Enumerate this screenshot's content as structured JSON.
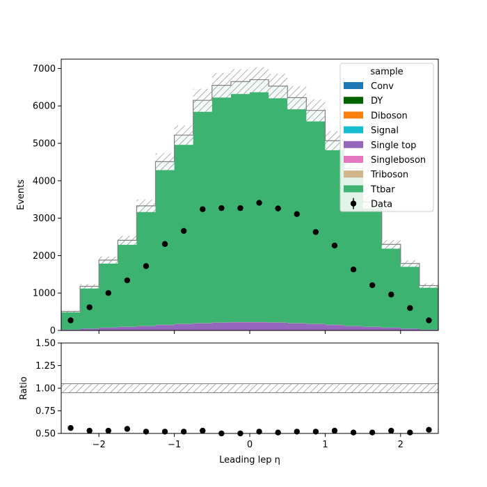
{
  "colors": {
    "Conv": "#1f77b4",
    "DY": "#006400",
    "Diboson": "#ff7f0e",
    "Signal": "#17becf",
    "Single top": "#9467bd",
    "Singleboson": "#e377c2",
    "Triboson": "#d2b48c",
    "Ttbar": "#3cb371",
    "Data": "#000000",
    "uncertainty": "#808080"
  },
  "legend": {
    "title": "sample",
    "entries": [
      "Conv",
      "DY",
      "Diboson",
      "Signal",
      "Single top",
      "Singleboson",
      "Triboson",
      "Ttbar",
      "Data"
    ]
  },
  "chart_data": [
    {
      "type": "bar",
      "subtype": "stacked-histogram",
      "xlabel": "",
      "ylabel": "Events",
      "xlim": [
        -2.5,
        2.5
      ],
      "ylim": [
        0,
        7250
      ],
      "xticks": [
        -2,
        -1,
        0,
        1,
        2
      ],
      "yticks": [
        0,
        1000,
        2000,
        3000,
        4000,
        5000,
        6000,
        7000
      ],
      "bin_edges": [
        -2.5,
        -2.25,
        -2.0,
        -1.75,
        -1.5,
        -1.25,
        -1.0,
        -0.75,
        -0.5,
        -0.25,
        0.0,
        0.25,
        0.5,
        0.75,
        1.0,
        1.25,
        1.5,
        1.75,
        2.0,
        2.25,
        2.5
      ],
      "series": [
        {
          "name": "Conv",
          "values": [
            0,
            0,
            0,
            0,
            0,
            0,
            0,
            0,
            0,
            0,
            0,
            0,
            0,
            0,
            0,
            0,
            0,
            0,
            0,
            0
          ]
        },
        {
          "name": "DY",
          "values": [
            2,
            3,
            4,
            5,
            5,
            6,
            7,
            8,
            8,
            8,
            8,
            8,
            8,
            7,
            6,
            5,
            5,
            4,
            3,
            2
          ]
        },
        {
          "name": "Diboson",
          "values": [
            0,
            0,
            0,
            0,
            0,
            0,
            0,
            0,
            0,
            0,
            0,
            0,
            0,
            0,
            0,
            0,
            0,
            0,
            0,
            0
          ]
        },
        {
          "name": "Signal",
          "values": [
            0,
            0,
            0,
            0,
            0,
            0,
            0,
            0,
            0,
            0,
            0,
            0,
            0,
            0,
            0,
            0,
            0,
            0,
            0,
            0
          ]
        },
        {
          "name": "Single top",
          "values": [
            20,
            45,
            70,
            90,
            110,
            140,
            165,
            180,
            200,
            210,
            210,
            200,
            180,
            165,
            140,
            110,
            90,
            70,
            45,
            20
          ]
        },
        {
          "name": "Singleboson",
          "values": [
            1,
            2,
            3,
            3,
            4,
            5,
            5,
            6,
            6,
            6,
            6,
            6,
            6,
            5,
            5,
            4,
            3,
            3,
            2,
            1
          ]
        },
        {
          "name": "Triboson",
          "values": [
            0,
            0,
            0,
            0,
            0,
            0,
            0,
            0,
            0,
            0,
            0,
            0,
            0,
            0,
            0,
            0,
            0,
            0,
            0,
            0
          ]
        },
        {
          "name": "Ttbar",
          "values": [
            487,
            1130,
            1803,
            2312,
            3211,
            4359,
            5043,
            5956,
            6336,
            6426,
            6476,
            6316,
            6026,
            5703,
            4919,
            4211,
            3332,
            2223,
            1740,
            1177
          ]
        }
      ],
      "total": [
        510,
        1180,
        1880,
        2410,
        3330,
        4510,
        5220,
        6150,
        6550,
        6650,
        6700,
        6530,
        6220,
        5880,
        5070,
        4330,
        3430,
        2300,
        1790,
        1200
      ],
      "uncertainty_fraction": 0.05,
      "data": [
        270,
        620,
        1000,
        1340,
        1720,
        2310,
        2660,
        3240,
        3270,
        3270,
        3410,
        3260,
        3110,
        2630,
        2270,
        1630,
        1210,
        960,
        600,
        270
      ]
    },
    {
      "type": "scatter",
      "xlabel": "Leading lep η",
      "ylabel": "Ratio",
      "xlim": [
        -2.5,
        2.5
      ],
      "ylim": [
        0.5,
        1.5
      ],
      "xticks": [
        -2,
        -1,
        0,
        1,
        2
      ],
      "yticks": [
        "0.50",
        "0.75",
        "1.00",
        "1.25",
        "1.50"
      ],
      "band": [
        0.95,
        1.05
      ],
      "x": [
        -2.375,
        -2.125,
        -1.875,
        -1.625,
        -1.375,
        -1.125,
        -0.875,
        -0.625,
        -0.375,
        -0.125,
        0.125,
        0.375,
        0.625,
        0.875,
        1.125,
        1.375,
        1.625,
        1.875,
        2.125,
        2.375
      ],
      "y": [
        0.56,
        0.53,
        0.53,
        0.55,
        0.52,
        0.52,
        0.52,
        0.53,
        0.5,
        0.5,
        0.52,
        0.51,
        0.52,
        0.52,
        0.53,
        0.51,
        0.51,
        0.53,
        0.51,
        0.54
      ]
    }
  ]
}
